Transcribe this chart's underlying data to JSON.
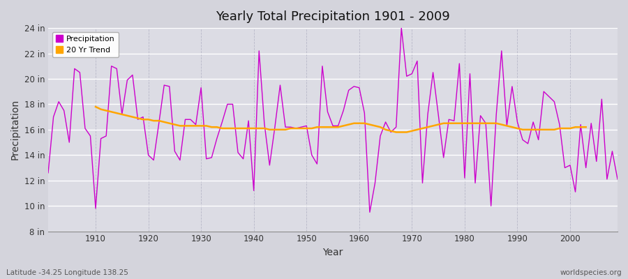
{
  "title": "Yearly Total Precipitation 1901 - 2009",
  "xlabel": "Year",
  "ylabel": "Precipitation",
  "lat_lon_label": "Latitude -34.25 Longitude 138.25",
  "website_label": "worldspecies.org",
  "ylim": [
    8,
    24
  ],
  "ytick_labels": [
    "8 in",
    "10 in",
    "12 in",
    "14 in",
    "16 in",
    "18 in",
    "20 in",
    "22 in",
    "24 in"
  ],
  "ytick_values": [
    8,
    10,
    12,
    14,
    16,
    18,
    20,
    22,
    24
  ],
  "precipitation_color": "#cc00cc",
  "trend_color": "#ffa500",
  "fig_bg_color": "#d8d8e0",
  "plot_bg_color": "#e0e0e8",
  "grid_color_h": "#ffffff",
  "grid_color_v": "#c8c8d8",
  "years": [
    1901,
    1902,
    1903,
    1904,
    1905,
    1906,
    1907,
    1908,
    1909,
    1910,
    1911,
    1912,
    1913,
    1914,
    1915,
    1916,
    1917,
    1918,
    1919,
    1920,
    1921,
    1922,
    1923,
    1924,
    1925,
    1926,
    1927,
    1928,
    1929,
    1930,
    1931,
    1932,
    1933,
    1934,
    1935,
    1936,
    1937,
    1938,
    1939,
    1940,
    1941,
    1942,
    1943,
    1944,
    1945,
    1946,
    1947,
    1948,
    1949,
    1950,
    1951,
    1952,
    1953,
    1954,
    1955,
    1956,
    1957,
    1958,
    1959,
    1960,
    1961,
    1962,
    1963,
    1964,
    1965,
    1966,
    1967,
    1968,
    1969,
    1970,
    1971,
    1972,
    1973,
    1974,
    1975,
    1976,
    1977,
    1978,
    1979,
    1980,
    1981,
    1982,
    1983,
    1984,
    1985,
    1986,
    1987,
    1988,
    1989,
    1990,
    1991,
    1992,
    1993,
    1994,
    1995,
    1996,
    1997,
    1998,
    1999,
    2000,
    2001,
    2002,
    2003,
    2004,
    2005,
    2006,
    2007,
    2008,
    2009
  ],
  "precipitation": [
    12.6,
    17.0,
    18.2,
    17.5,
    15.0,
    20.8,
    20.5,
    16.1,
    15.5,
    9.8,
    15.3,
    15.5,
    21.0,
    20.8,
    17.2,
    19.9,
    20.3,
    16.8,
    17.0,
    14.0,
    13.6,
    16.5,
    19.5,
    19.4,
    14.3,
    13.6,
    16.8,
    16.8,
    16.4,
    19.3,
    13.7,
    13.8,
    15.3,
    16.6,
    18.0,
    18.0,
    14.2,
    13.7,
    16.7,
    11.2,
    22.2,
    16.5,
    13.2,
    16.2,
    19.5,
    16.2,
    16.2,
    16.1,
    16.2,
    16.3,
    14.0,
    13.3,
    21.0,
    17.4,
    16.3,
    16.3,
    17.5,
    19.1,
    19.4,
    19.3,
    17.3,
    9.5,
    11.8,
    15.5,
    16.6,
    15.8,
    16.2,
    24.0,
    20.2,
    20.4,
    21.4,
    11.8,
    17.2,
    20.5,
    17.2,
    13.8,
    16.8,
    16.7,
    21.2,
    12.2,
    20.4,
    11.8,
    17.1,
    16.5,
    10.0,
    17.2,
    22.2,
    16.3,
    19.4,
    16.6,
    15.2,
    14.9,
    16.6,
    15.2,
    19.0,
    18.6,
    18.2,
    16.4,
    13.0,
    13.2,
    11.1,
    16.4,
    13.0,
    16.5,
    13.5,
    18.4,
    12.1,
    14.3,
    12.1
  ],
  "trend_years": [
    1910,
    1911,
    1912,
    1913,
    1914,
    1915,
    1916,
    1917,
    1918,
    1919,
    1920,
    1921,
    1922,
    1923,
    1924,
    1925,
    1926,
    1927,
    1928,
    1929,
    1930,
    1931,
    1932,
    1933,
    1934,
    1935,
    1936,
    1937,
    1938,
    1939,
    1940,
    1941,
    1942,
    1943,
    1944,
    1945,
    1946,
    1947,
    1948,
    1949,
    1950,
    1951,
    1952,
    1953,
    1954,
    1955,
    1956,
    1957,
    1958,
    1959,
    1960,
    1961,
    1962,
    1963,
    1964,
    1965,
    1966,
    1967,
    1968,
    1969,
    1970,
    1971,
    1972,
    1973,
    1974,
    1975,
    1976,
    1977,
    1978,
    1979,
    1980,
    1981,
    1982,
    1983,
    1984,
    1985,
    1986,
    1987,
    1988,
    1989,
    1990,
    1991,
    1992,
    1993,
    1994,
    1995,
    1996,
    1997,
    1998,
    1999,
    2000,
    2001,
    2002,
    2003
  ],
  "trend_values": [
    17.8,
    17.6,
    17.5,
    17.4,
    17.3,
    17.2,
    17.1,
    17.0,
    16.9,
    16.8,
    16.8,
    16.7,
    16.7,
    16.6,
    16.5,
    16.4,
    16.3,
    16.3,
    16.3,
    16.3,
    16.3,
    16.3,
    16.2,
    16.2,
    16.1,
    16.1,
    16.1,
    16.1,
    16.1,
    16.1,
    16.1,
    16.1,
    16.1,
    16.0,
    16.0,
    16.0,
    16.0,
    16.1,
    16.1,
    16.1,
    16.1,
    16.1,
    16.2,
    16.2,
    16.2,
    16.2,
    16.2,
    16.3,
    16.4,
    16.5,
    16.5,
    16.5,
    16.4,
    16.3,
    16.2,
    16.0,
    15.9,
    15.8,
    15.8,
    15.8,
    15.9,
    16.0,
    16.1,
    16.2,
    16.3,
    16.4,
    16.5,
    16.5,
    16.5,
    16.5,
    16.5,
    16.5,
    16.5,
    16.5,
    16.5,
    16.5,
    16.5,
    16.4,
    16.3,
    16.2,
    16.1,
    16.0,
    16.0,
    16.0,
    16.0,
    16.0,
    16.0,
    16.0,
    16.1,
    16.1,
    16.1,
    16.2,
    16.2,
    16.2
  ]
}
